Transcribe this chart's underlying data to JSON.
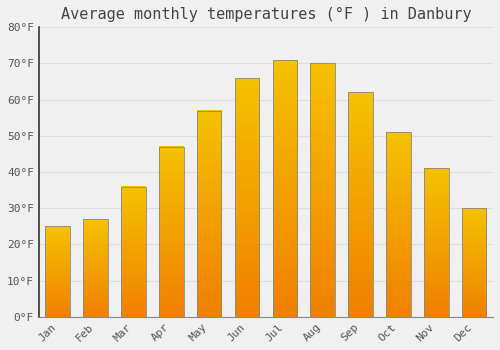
{
  "title": "Average monthly temperatures (°F ) in Danbury",
  "months": [
    "Jan",
    "Feb",
    "Mar",
    "Apr",
    "May",
    "Jun",
    "Jul",
    "Aug",
    "Sep",
    "Oct",
    "Nov",
    "Dec"
  ],
  "values": [
    25,
    27,
    36,
    47,
    57,
    66,
    71,
    70,
    62,
    51,
    41,
    30
  ],
  "bar_color_top": "#F5C200",
  "bar_color_mid": "#F5A800",
  "bar_color_bottom": "#F08000",
  "bar_edge_color": "#888888",
  "ylim": [
    0,
    80
  ],
  "yticks": [
    0,
    10,
    20,
    30,
    40,
    50,
    60,
    70,
    80
  ],
  "background_color": "#f0f0f0",
  "grid_color": "#dddddd",
  "title_fontsize": 11,
  "tick_fontsize": 8,
  "font_family": "monospace"
}
